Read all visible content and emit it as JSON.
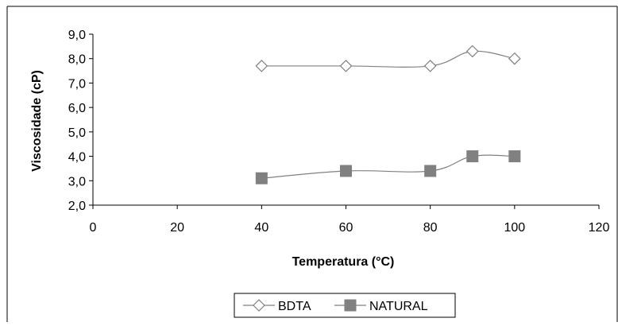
{
  "chart_data": {
    "type": "line",
    "title": "",
    "xlabel": "Temperatura (°C)",
    "ylabel": "Viscosidade (cP)",
    "xlim": [
      0,
      120
    ],
    "ylim": [
      2.0,
      9.0
    ],
    "x_ticks": [
      "0",
      "20",
      "40",
      "60",
      "80",
      "100",
      "120"
    ],
    "y_ticks": [
      "2,0",
      "3,0",
      "4,0",
      "5,0",
      "6,0",
      "7,0",
      "8,0",
      "9,0"
    ],
    "grid": false,
    "legend_position": "bottom",
    "series": [
      {
        "name": "BDTA",
        "marker": "diamond-open",
        "color": "#808080",
        "x": [
          40,
          60,
          80,
          90,
          100
        ],
        "y": [
          7.7,
          7.7,
          7.7,
          8.3,
          8.0
        ]
      },
      {
        "name": "NATURAL",
        "marker": "square-filled",
        "color": "#808080",
        "x": [
          40,
          60,
          80,
          90,
          100
        ],
        "y": [
          3.1,
          3.4,
          3.4,
          4.0,
          4.0
        ]
      }
    ]
  }
}
